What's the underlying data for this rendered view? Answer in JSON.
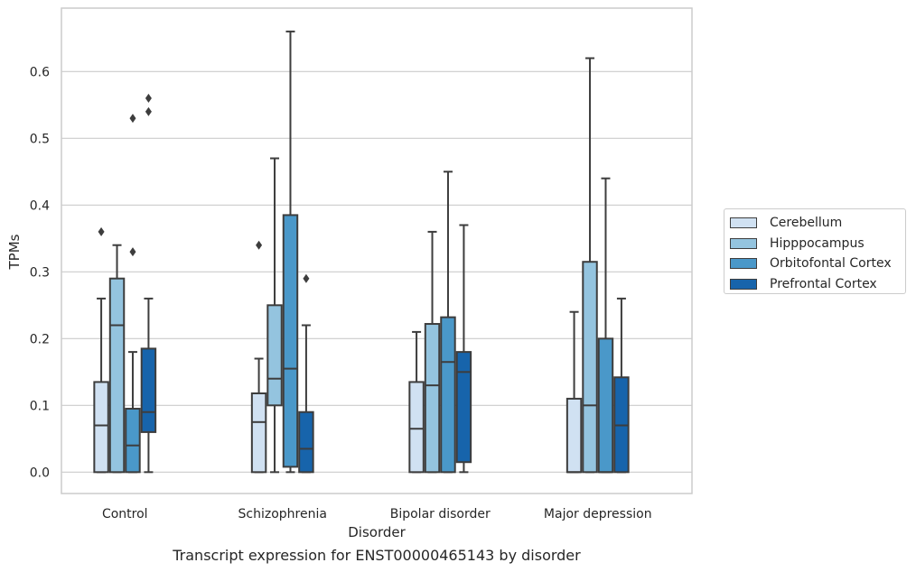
{
  "chart_data": {
    "type": "boxplot",
    "title": "",
    "caption": "Transcript expression for ENST00000465143 by disorder",
    "xlabel": "Disorder",
    "ylabel": "TPMs",
    "ylim": [
      -0.032,
      0.695
    ],
    "yticks": [
      "0.0",
      "0.1",
      "0.2",
      "0.3",
      "0.4",
      "0.5",
      "0.6"
    ],
    "grid": "horizontal",
    "legend_position": "right",
    "categories": [
      "Control",
      "Schizophrenia",
      "Bipolar disorder",
      "Major depression"
    ],
    "series": [
      {
        "name": "Cerebellum",
        "color": "#d0e1f2",
        "boxes": [
          {
            "whislo": 0.0,
            "q1": 0.0,
            "med": 0.07,
            "q3": 0.135,
            "whishi": 0.26,
            "fliers": [
              0.36
            ]
          },
          {
            "whislo": 0.0,
            "q1": 0.0,
            "med": 0.075,
            "q3": 0.118,
            "whishi": 0.17,
            "fliers": [
              0.34
            ]
          },
          {
            "whislo": 0.0,
            "q1": 0.0,
            "med": 0.065,
            "q3": 0.135,
            "whishi": 0.21,
            "fliers": []
          },
          {
            "whislo": 0.0,
            "q1": 0.0,
            "med": 0.0,
            "q3": 0.11,
            "whishi": 0.24,
            "fliers": []
          }
        ]
      },
      {
        "name": "Hipppocampus",
        "color": "#94c4df",
        "boxes": [
          {
            "whislo": 0.0,
            "q1": 0.0,
            "med": 0.22,
            "q3": 0.29,
            "whishi": 0.34,
            "fliers": []
          },
          {
            "whislo": 0.0,
            "q1": 0.1,
            "med": 0.14,
            "q3": 0.25,
            "whishi": 0.47,
            "fliers": []
          },
          {
            "whislo": 0.0,
            "q1": 0.0,
            "med": 0.13,
            "q3": 0.222,
            "whishi": 0.36,
            "fliers": []
          },
          {
            "whislo": 0.0,
            "q1": 0.0,
            "med": 0.1,
            "q3": 0.315,
            "whishi": 0.62,
            "fliers": []
          }
        ]
      },
      {
        "name": "Orbitofontal Cortex",
        "color": "#4a98c9",
        "boxes": [
          {
            "whislo": 0.0,
            "q1": 0.0,
            "med": 0.04,
            "q3": 0.095,
            "whishi": 0.18,
            "fliers": [
              0.33,
              0.53
            ]
          },
          {
            "whislo": 0.0,
            "q1": 0.008,
            "med": 0.155,
            "q3": 0.385,
            "whishi": 0.66,
            "fliers": []
          },
          {
            "whislo": 0.0,
            "q1": 0.0,
            "med": 0.165,
            "q3": 0.232,
            "whishi": 0.45,
            "fliers": []
          },
          {
            "whislo": 0.0,
            "q1": 0.0,
            "med": 0.0,
            "q3": 0.2,
            "whishi": 0.44,
            "fliers": []
          }
        ]
      },
      {
        "name": "Prefrontal Cortex",
        "color": "#1764ab",
        "boxes": [
          {
            "whislo": 0.0,
            "q1": 0.06,
            "med": 0.09,
            "q3": 0.185,
            "whishi": 0.26,
            "fliers": [
              0.54,
              0.56
            ]
          },
          {
            "whislo": 0.0,
            "q1": 0.0,
            "med": 0.035,
            "q3": 0.09,
            "whishi": 0.22,
            "fliers": [
              0.29
            ]
          },
          {
            "whislo": 0.0,
            "q1": 0.015,
            "med": 0.15,
            "q3": 0.18,
            "whishi": 0.37,
            "fliers": []
          },
          {
            "whislo": 0.0,
            "q1": 0.0,
            "med": 0.07,
            "q3": 0.142,
            "whishi": 0.26,
            "fliers": []
          }
        ]
      }
    ]
  }
}
